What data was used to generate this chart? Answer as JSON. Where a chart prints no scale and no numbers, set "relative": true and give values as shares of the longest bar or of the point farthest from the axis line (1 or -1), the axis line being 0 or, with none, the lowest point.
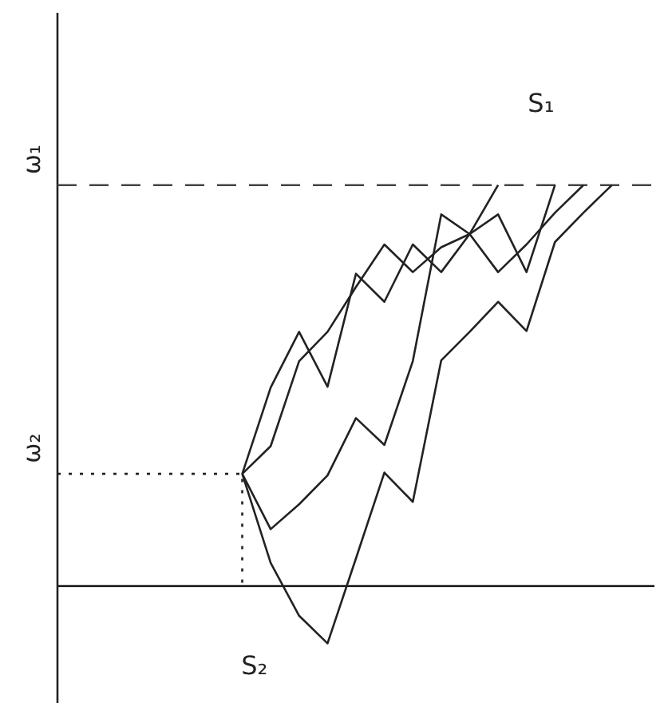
{
  "chart_data": {
    "type": "line",
    "relative": true,
    "tick_labels": false,
    "grid": false,
    "marker": "none",
    "categories": [
      null,
      null,
      null,
      null,
      null,
      null,
      null,
      null,
      null,
      null,
      null,
      null,
      null,
      null,
      null,
      null,
      null,
      null,
      null,
      null,
      null
    ],
    "series": [
      {
        "color": "#222222",
        "values": [
          null,
          null,
          null,
          null,
          null,
          null,
          0.28,
          0.495,
          0.634,
          0.497,
          0.779,
          0.709,
          0.852,
          0.783,
          0.878,
          1.0,
          null,
          null,
          null,
          null,
          null
        ]
      },
      {
        "color": "#222222",
        "values": [
          null,
          null,
          null,
          null,
          null,
          null,
          0.28,
          0.349,
          0.561,
          0.634,
          0.746,
          0.852,
          0.783,
          0.845,
          0.878,
          0.927,
          0.783,
          1.0,
          null,
          null,
          null
        ]
      },
      {
        "color": "#222222",
        "values": [
          null,
          null,
          null,
          null,
          null,
          null,
          0.28,
          0.142,
          0.204,
          0.276,
          0.419,
          0.352,
          0.561,
          0.927,
          0.878,
          0.783,
          0.852,
          0.931,
          1.0,
          null,
          null
        ]
      },
      {
        "color": "#222222",
        "values": [
          null,
          null,
          null,
          null,
          null,
          null,
          0.28,
          0.058,
          -0.074,
          -0.143,
          0.069,
          0.283,
          0.21,
          0.563,
          0.634,
          0.709,
          0.636,
          0.858,
          0.931,
          1.0,
          null
        ]
      }
    ],
    "ref_lines": [
      {
        "axis": "y",
        "value": 1,
        "label": "ω₁",
        "line_style": "dashed",
        "color": "#444444"
      },
      {
        "axis": "y",
        "value": 0.28,
        "label": "ω₂",
        "line_style": "dotted",
        "color": "#222222"
      }
    ],
    "annotations": [
      "S₁",
      "S₂"
    ]
  }
}
